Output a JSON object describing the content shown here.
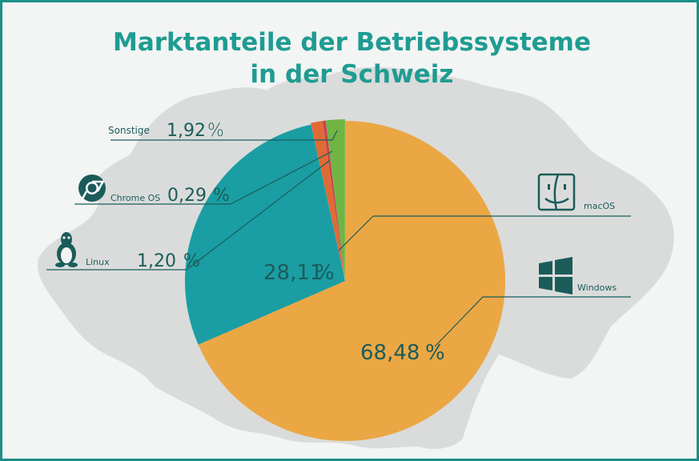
{
  "title_line1": "Marktanteile der Betriebssysteme",
  "title_line2": "in der Schweiz",
  "colors": {
    "accent": "#1f9c92",
    "windows": "#eba744",
    "macos": "#1a9ea3",
    "linux": "#e06a36",
    "chromeos": "#c8414b",
    "sonstige": "#6fb544",
    "map": "#dadcdb",
    "label_text": "#1b5c5a"
  },
  "chart_data": {
    "type": "pie",
    "title": "Marktanteile der Betriebssysteme in der Schweiz",
    "slices": [
      {
        "name": "Windows",
        "value": 68.48,
        "label": "68,48",
        "color": "#eba744",
        "icon": "windows-logo-icon"
      },
      {
        "name": "macOS",
        "value": 28.11,
        "label": "28,11",
        "color": "#1a9ea3",
        "icon": "apple-finder-icon"
      },
      {
        "name": "Linux",
        "value": 1.2,
        "label": "1,20",
        "color": "#e06a36",
        "icon": "linux-penguin-icon"
      },
      {
        "name": "Chrome OS",
        "value": 0.29,
        "label": "0,29",
        "color": "#c8414b",
        "icon": "chrome-logo-icon"
      },
      {
        "name": "Sonstige",
        "value": 1.92,
        "label": "1,92",
        "color": "#6fb544",
        "icon": ""
      }
    ],
    "unit": "%",
    "legend": "callout labels around pie"
  }
}
